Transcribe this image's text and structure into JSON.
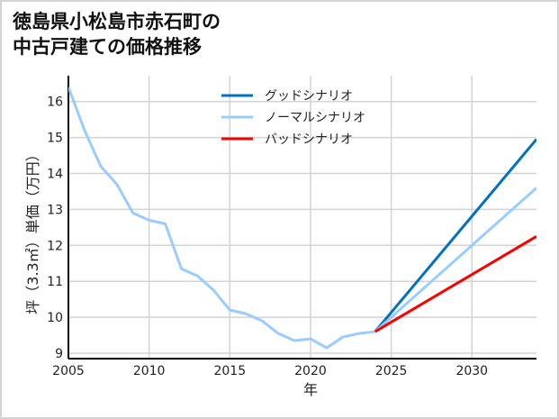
{
  "title_line1": "徳島県小松島市赤石町の",
  "title_line2": "中古戸建ての価格推移",
  "chart_data": {
    "type": "line",
    "title": "徳島県小松島市赤石町の中古戸建ての価格推移",
    "xlabel": "年",
    "ylabel": "坪（3.3㎡）単価（万円）",
    "xlim": [
      2005,
      2034
    ],
    "ylim": [
      8.85,
      16.8
    ],
    "xticks": [
      2005,
      2010,
      2015,
      2020,
      2025,
      2030
    ],
    "yticks": [
      9,
      10,
      11,
      12,
      13,
      14,
      15,
      16
    ],
    "grid": true,
    "legend_position": "upper center",
    "series": [
      {
        "name": "ノーマルシナリオ",
        "color": "#99ccff",
        "x": [
          2005,
          2006,
          2007,
          2008,
          2009,
          2010,
          2011,
          2012,
          2013,
          2014,
          2015,
          2016,
          2017,
          2018,
          2019,
          2020,
          2021,
          2022,
          2023,
          2024
        ],
        "values": [
          16.4,
          15.2,
          14.2,
          13.7,
          12.9,
          12.7,
          12.6,
          11.35,
          11.15,
          10.75,
          10.2,
          10.1,
          9.9,
          9.55,
          9.35,
          9.4,
          9.15,
          9.45,
          9.55,
          9.6
        ]
      },
      {
        "name": "グッドシナリオ",
        "color": "#0070c0",
        "x": [
          2024,
          2034
        ],
        "values": [
          9.6,
          14.95
        ]
      },
      {
        "name": "ノーマルシナリオ",
        "color": "#99ccff",
        "x": [
          2024,
          2034
        ],
        "values": [
          9.6,
          13.6
        ]
      },
      {
        "name": "バッドシナリオ",
        "color": "#ff0000",
        "x": [
          2024,
          2034
        ],
        "values": [
          9.6,
          12.25
        ]
      }
    ]
  },
  "legend": [
    {
      "label": "グッドシナリオ",
      "color": "#0070c0"
    },
    {
      "label": "ノーマルシナリオ",
      "color": "#99ccff"
    },
    {
      "label": "バッドシナリオ",
      "color": "#ff0000"
    }
  ]
}
